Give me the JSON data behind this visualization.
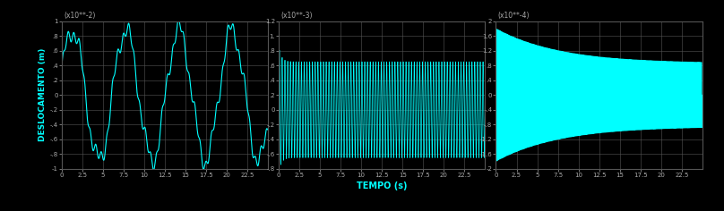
{
  "background_color": "#000000",
  "plot_bg_color": "#000000",
  "grid_color": "#555555",
  "line_color": "#00FFFF",
  "text_color": "#00FFFF",
  "tick_color": "#aaaaaa",
  "xlabel": "TEMPO (s)",
  "ylabel": "DESLOCAMENTO (m)",
  "xlim": [
    0,
    25
  ],
  "subplots": [
    {
      "scale_label": "(x10**-2)",
      "ylim": [
        -1.0,
        1.0
      ],
      "yticks": [
        -1.0,
        -0.8,
        -0.6,
        -0.4,
        -0.2,
        0.0,
        0.2,
        0.4,
        0.6,
        0.8,
        1.0
      ],
      "ytick_labels": [
        "-1",
        "-.8",
        "-.6",
        "-.4",
        "-.2",
        "0",
        ".2",
        ".4",
        ".6",
        ".8",
        "1"
      ]
    },
    {
      "scale_label": "(x10**-3)",
      "ylim": [
        -0.8,
        1.2
      ],
      "yticks": [
        -0.8,
        -0.6,
        -0.4,
        -0.2,
        0.0,
        0.2,
        0.4,
        0.6,
        0.8,
        1.0,
        1.2
      ],
      "ytick_labels": [
        "-.8",
        "-.6",
        "-.4",
        "-.2",
        "0",
        ".2",
        ".4",
        ".6",
        ".8",
        "1.",
        "1.2"
      ]
    },
    {
      "scale_label": "(x10**-4)",
      "ylim": [
        -2.0,
        2.0
      ],
      "yticks": [
        -2.0,
        -1.6,
        -1.2,
        -0.8,
        -0.4,
        0.0,
        0.4,
        0.8,
        1.2,
        1.6,
        2.0
      ],
      "ytick_labels": [
        "-2",
        "-1.6",
        "-1.2",
        "-.8",
        "-.4",
        "0",
        ".4",
        ".8",
        "1.2",
        "1.6",
        "2"
      ]
    }
  ],
  "xticks": [
    0,
    2.5,
    5,
    7.5,
    10,
    12.5,
    15,
    17.5,
    20,
    22.5
  ],
  "xtick_labels": [
    "0",
    "2.5",
    "5",
    "7.5",
    "10",
    "12.5",
    "15",
    "17.5",
    "20",
    "22.5"
  ]
}
